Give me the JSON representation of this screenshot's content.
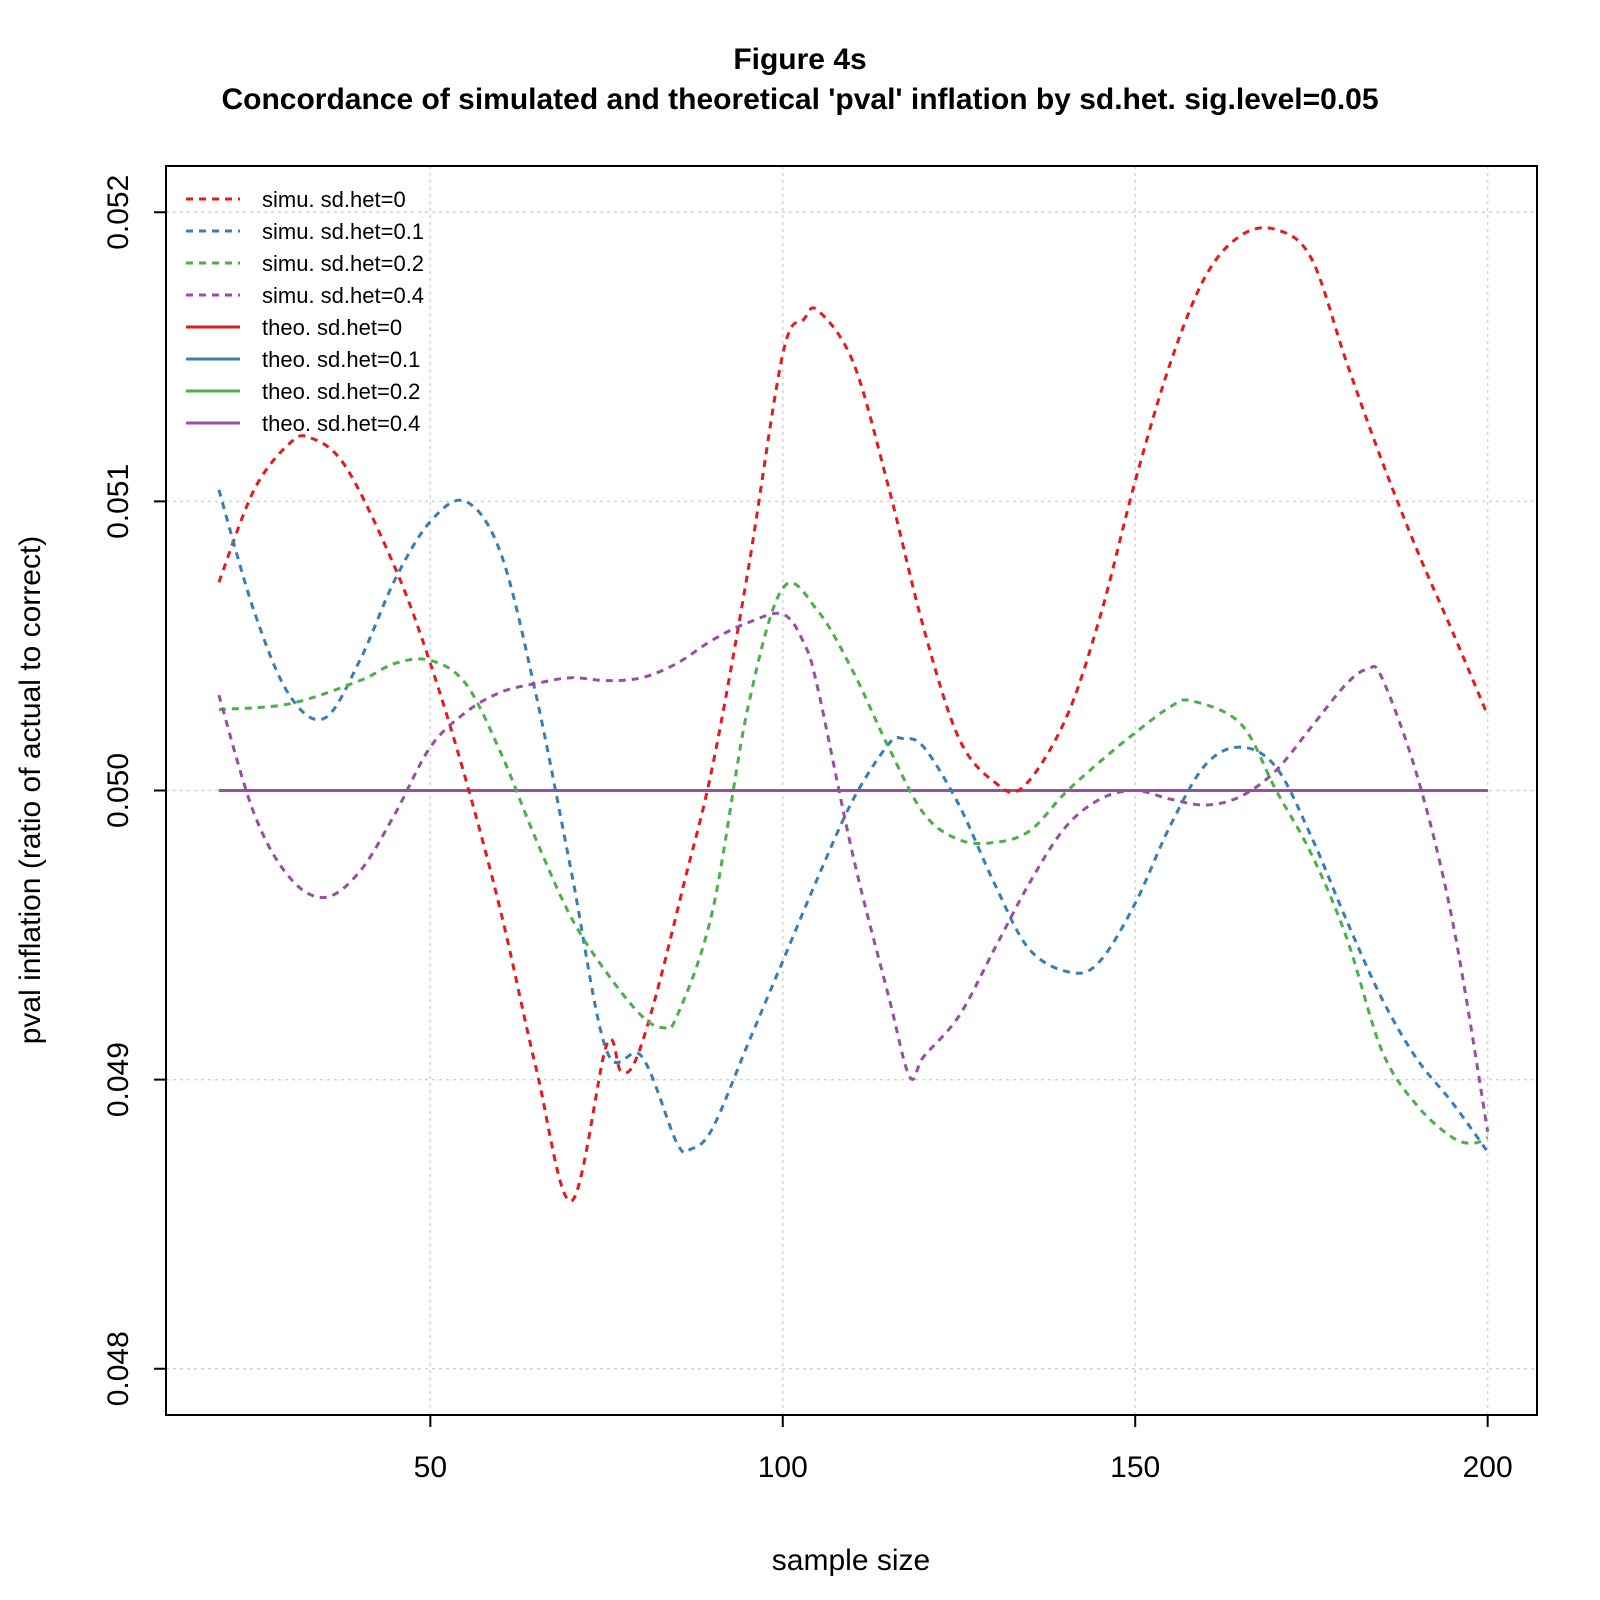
{
  "title": "Figure 4s",
  "subtitle": "Concordance of simulated and theoretical 'pval' inflation by sd.het. sig.level=0.05",
  "chart_data": {
    "type": "line",
    "xlabel": "sample size",
    "ylabel": "pval inflation (ratio of actual to correct)",
    "xlim": [
      12.5,
      207
    ],
    "ylim": [
      0.04784,
      0.05216
    ],
    "x_ticks": [
      "50",
      "100",
      "150",
      "200"
    ],
    "x_tick_values": [
      50,
      100,
      150,
      200
    ],
    "y_ticks": [
      "0.048",
      "0.049",
      "0.050",
      "0.051",
      "0.052"
    ],
    "y_tick_values": [
      0.048,
      0.049,
      0.05,
      0.051,
      0.052
    ],
    "grid": true,
    "legend_position": "top-left",
    "series": [
      {
        "name": "simu. sd.het=0",
        "style": "dashed",
        "color": "#e41a1c",
        "x": [
          20,
          25,
          30,
          33,
          38,
          45,
          50,
          55,
          60,
          65,
          70,
          75,
          77,
          79,
          82,
          86,
          90,
          95,
          100,
          103,
          105,
          110,
          115,
          120,
          125,
          130,
          134,
          140,
          145,
          150,
          155,
          160,
          165,
          170,
          175,
          180,
          185,
          190,
          195,
          200
        ],
        "y": [
          0.05072,
          0.05104,
          0.0512,
          0.05122,
          0.05112,
          0.05077,
          0.05044,
          0.05004,
          0.04958,
          0.04904,
          0.04858,
          0.04912,
          0.04903,
          0.04906,
          0.04929,
          0.04968,
          0.05008,
          0.05075,
          0.05151,
          0.05163,
          0.05166,
          0.05148,
          0.05105,
          0.05056,
          0.05018,
          0.05003,
          0.05001,
          0.05024,
          0.0506,
          0.05107,
          0.05148,
          0.05178,
          0.05192,
          0.05194,
          0.05184,
          0.05148,
          0.05114,
          0.05083,
          0.05055,
          0.05026
        ]
      },
      {
        "name": "simu. sd.het=0.1",
        "style": "dashed",
        "color": "#377eb8",
        "x": [
          20,
          25,
          30,
          35,
          40,
          45,
          50,
          55,
          60,
          65,
          70,
          75,
          80,
          85,
          87,
          90,
          95,
          100,
          105,
          110,
          115,
          117,
          120,
          125,
          130,
          135,
          141,
          145,
          150,
          155,
          160,
          165,
          170,
          175,
          180,
          185,
          190,
          195,
          200
        ],
        "y": [
          0.05104,
          0.05062,
          0.05033,
          0.05025,
          0.05045,
          0.05073,
          0.05093,
          0.051,
          0.05082,
          0.05033,
          0.04972,
          0.0491,
          0.04908,
          0.04878,
          0.04876,
          0.04883,
          0.04912,
          0.04941,
          0.0497,
          0.04997,
          0.05016,
          0.05018,
          0.05015,
          0.04995,
          0.04968,
          0.04945,
          0.04937,
          0.04941,
          0.04961,
          0.04988,
          0.05009,
          0.05015,
          0.05008,
          0.04984,
          0.04955,
          0.04928,
          0.04907,
          0.04892,
          0.04875
        ]
      },
      {
        "name": "simu. sd.het=0.2",
        "style": "dashed",
        "color": "#4daf4a",
        "x": [
          20,
          30,
          40,
          45,
          50,
          55,
          60,
          65,
          70,
          75,
          80,
          83,
          85,
          90,
          95,
          100,
          105,
          110,
          115,
          120,
          125,
          130,
          135,
          140,
          145,
          150,
          155,
          158,
          165,
          170,
          175,
          180,
          185,
          190,
          195,
          198,
          200
        ],
        "y": [
          0.05028,
          0.0503,
          0.05038,
          0.05044,
          0.05045,
          0.05037,
          0.05013,
          0.04983,
          0.04956,
          0.04937,
          0.04922,
          0.04918,
          0.04922,
          0.04958,
          0.05028,
          0.0507,
          0.05062,
          0.05041,
          0.05015,
          0.04992,
          0.04983,
          0.04982,
          0.04986,
          0.04999,
          0.0501,
          0.0502,
          0.05029,
          0.05031,
          0.05023,
          0.05,
          0.04978,
          0.04949,
          0.0491,
          0.04891,
          0.0488,
          0.04878,
          0.0488
        ]
      },
      {
        "name": "simu. sd.het=0.4",
        "style": "dashed",
        "color": "#984ea3",
        "x": [
          20,
          25,
          30,
          35,
          40,
          45,
          50,
          55,
          60,
          65,
          70,
          75,
          80,
          85,
          90,
          95,
          100,
          103,
          105,
          110,
          115,
          118,
          120,
          125,
          130,
          135,
          140,
          145,
          150,
          155,
          160,
          165,
          170,
          175,
          180,
          183,
          185,
          190,
          195,
          200
        ],
        "y": [
          0.05033,
          0.04992,
          0.0497,
          0.04963,
          0.04972,
          0.04992,
          0.05015,
          0.05027,
          0.05034,
          0.05037,
          0.05039,
          0.05038,
          0.05039,
          0.05044,
          0.05052,
          0.05058,
          0.05061,
          0.05051,
          0.05035,
          0.04977,
          0.04929,
          0.04901,
          0.04908,
          0.04922,
          0.04945,
          0.04968,
          0.04987,
          0.04997,
          0.05,
          0.04997,
          0.04995,
          0.04998,
          0.05007,
          0.05022,
          0.05037,
          0.05042,
          0.05039,
          0.05005,
          0.04955,
          0.04882
        ]
      },
      {
        "name": "theo. sd.het=0",
        "style": "solid",
        "color": "#e41a1c",
        "x": [
          20,
          200
        ],
        "y": [
          0.05,
          0.05
        ]
      },
      {
        "name": "theo. sd.het=0.1",
        "style": "solid",
        "color": "#377eb8",
        "x": [
          20,
          200
        ],
        "y": [
          0.05,
          0.05
        ]
      },
      {
        "name": "theo. sd.het=0.2",
        "style": "solid",
        "color": "#4daf4a",
        "x": [
          20,
          200
        ],
        "y": [
          0.05,
          0.05
        ]
      },
      {
        "name": "theo. sd.het=0.4",
        "style": "solid",
        "color": "#984ea3",
        "x": [
          20,
          200
        ],
        "y": [
          0.05,
          0.05
        ]
      }
    ]
  }
}
